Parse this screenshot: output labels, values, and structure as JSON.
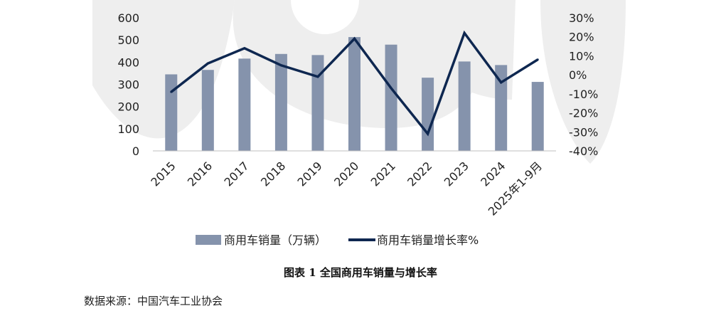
{
  "caption": "图表 1 全国商用车销量与增长率",
  "source": "数据来源：中国汽车工业协会",
  "colors": {
    "bar": "#8593ac",
    "line": "#0e2750",
    "watermark": "#eeeeee"
  },
  "chart_data": {
    "type": "bar",
    "categories": [
      "2015",
      "2016",
      "2017",
      "2018",
      "2019",
      "2020",
      "2021",
      "2022",
      "2023",
      "2024",
      "2025年1-9月"
    ],
    "series": [
      {
        "name": "商用车销量（万辆）",
        "type": "bar",
        "axis": "left",
        "values": [
          345,
          365,
          416,
          437,
          432,
          513,
          479,
          330,
          403,
          387,
          311
        ]
      },
      {
        "name": "商用车销量增长率%",
        "type": "line",
        "axis": "right",
        "values": [
          -9,
          6,
          14,
          5,
          -1,
          19,
          -7,
          -31,
          22,
          -4,
          8
        ]
      }
    ],
    "y_left": {
      "min": 0,
      "max": 600,
      "ticks": [
        0,
        100,
        200,
        300,
        400,
        500,
        600
      ]
    },
    "y_right": {
      "min": -40,
      "max": 30,
      "ticks": [
        -40,
        -30,
        -20,
        -10,
        0,
        10,
        20,
        30
      ],
      "tick_labels": [
        "-40%",
        "-30%",
        "-20%",
        "-10%",
        "0%",
        "10%",
        "20%",
        "30%"
      ]
    },
    "legend_position": "bottom"
  }
}
